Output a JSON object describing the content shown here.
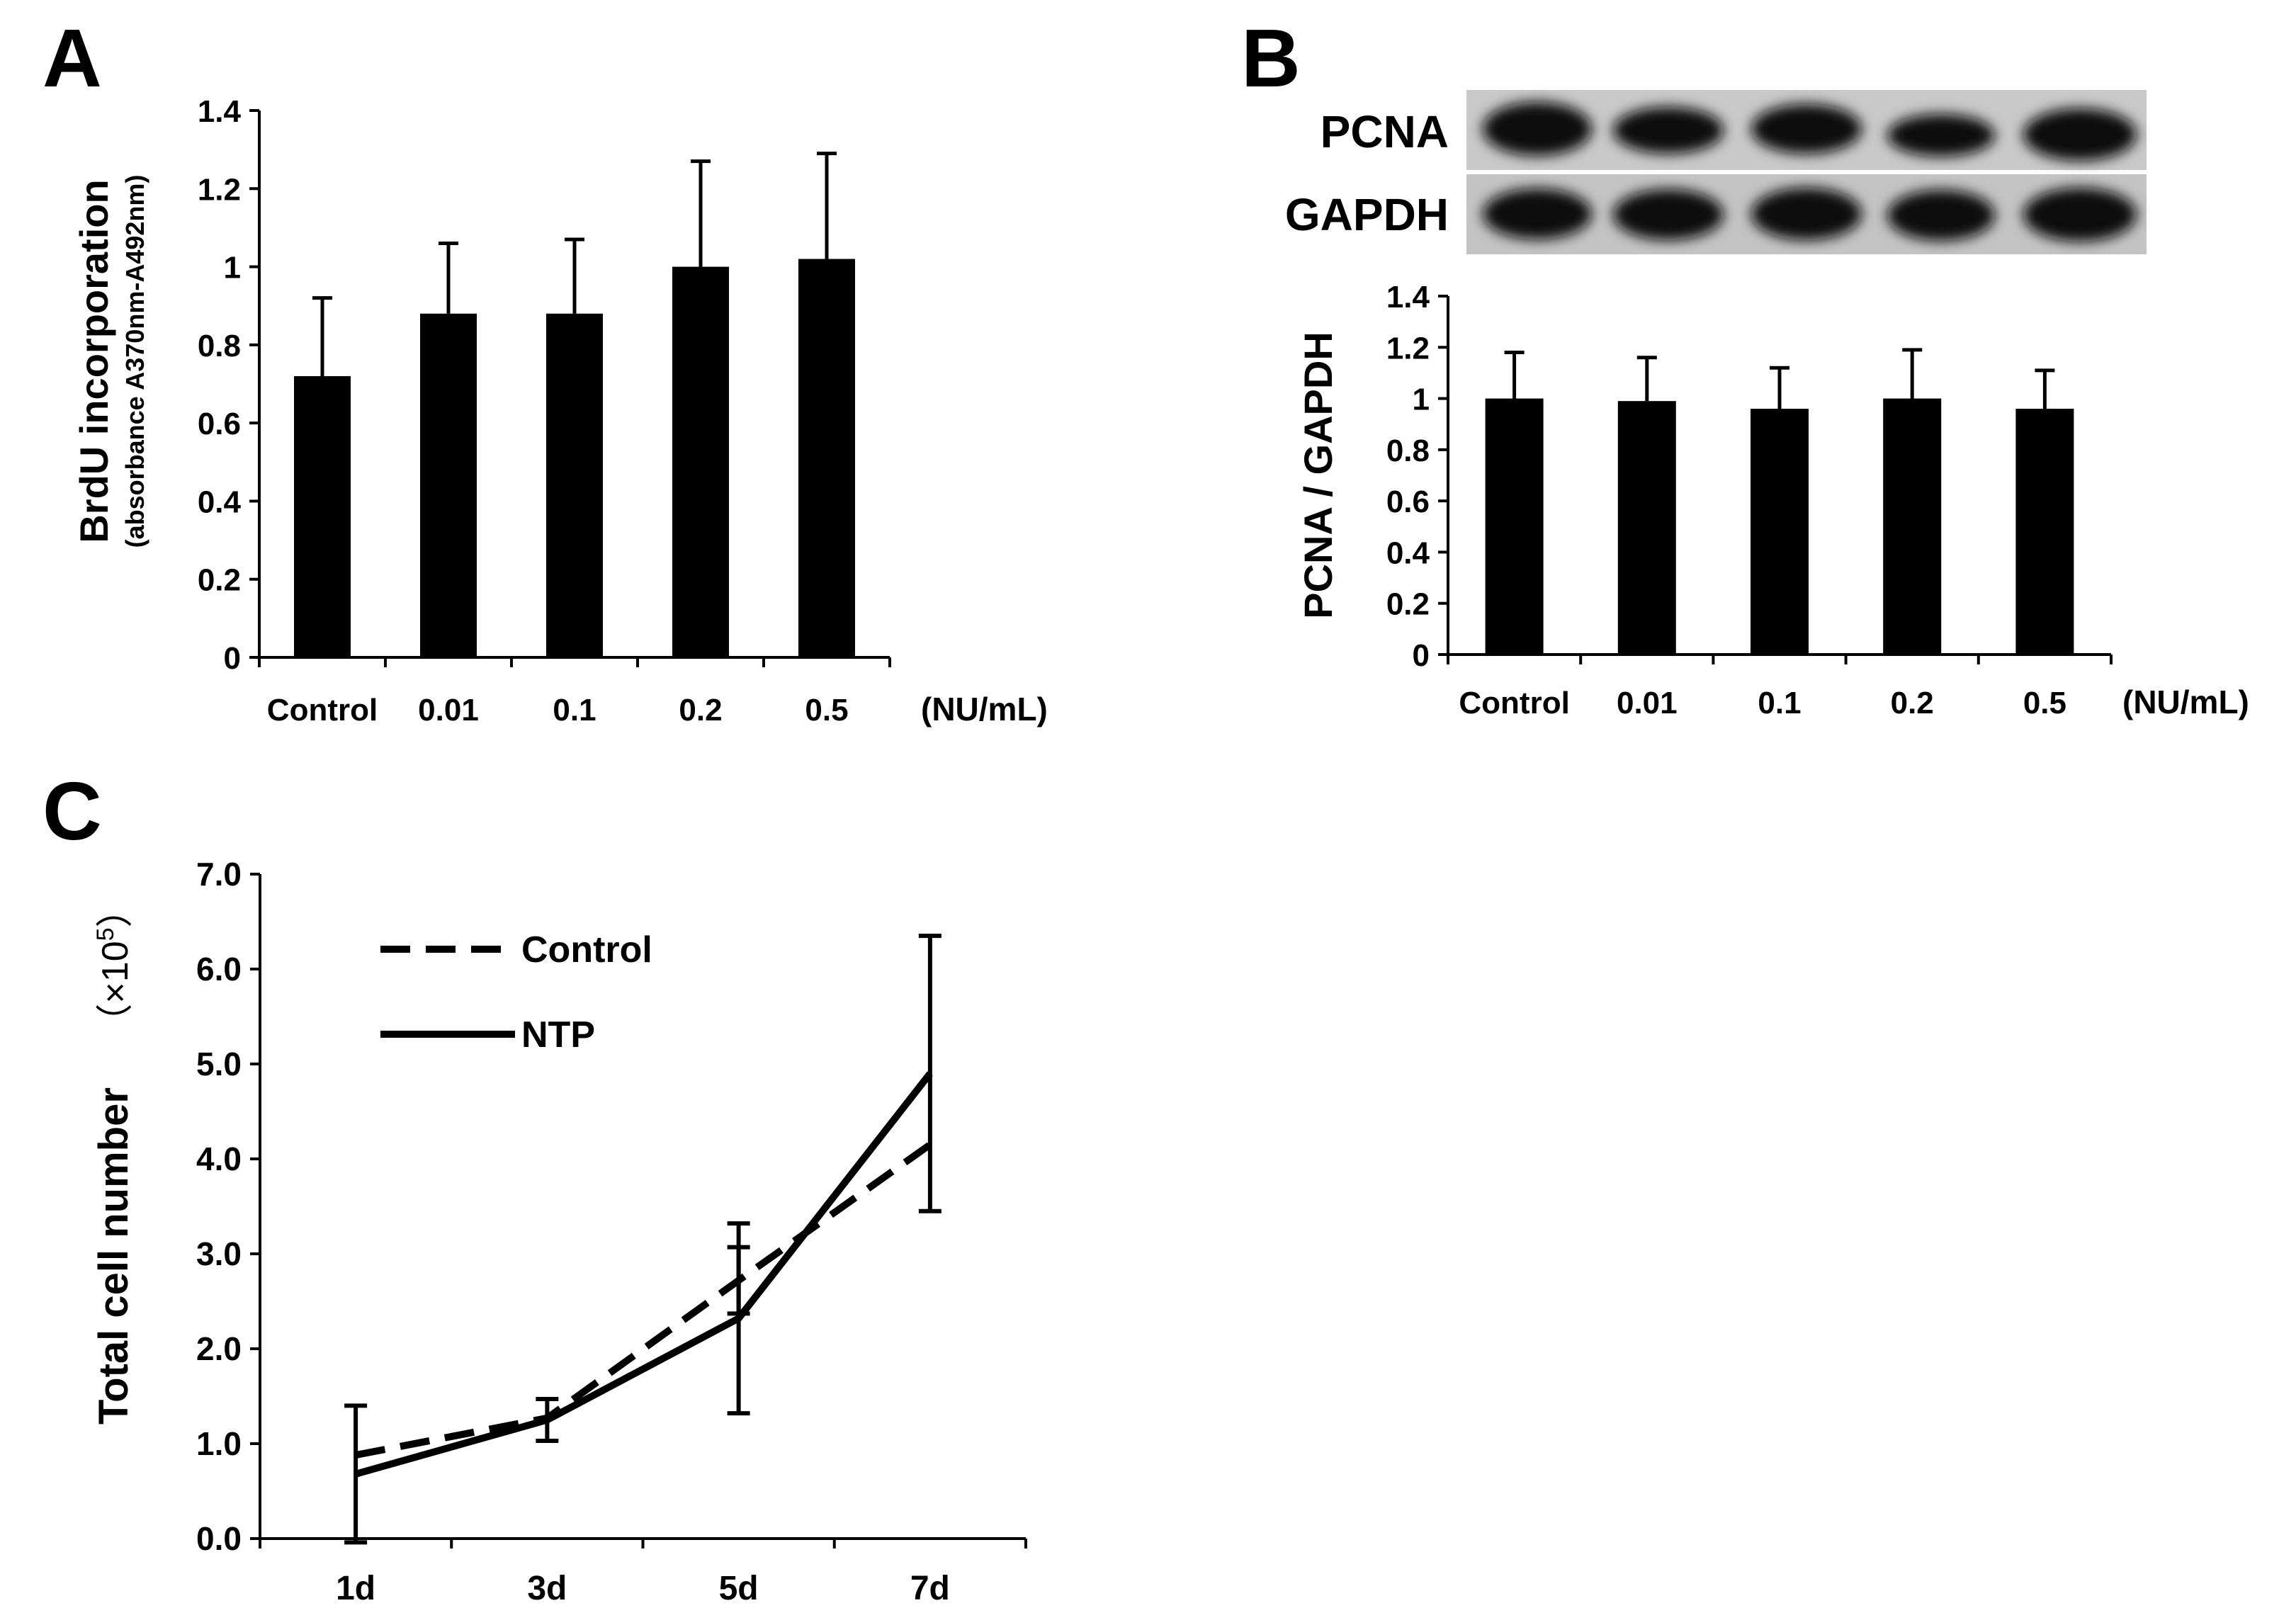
{
  "panels": {
    "a": {
      "label": "A"
    },
    "b": {
      "label": "B"
    },
    "c": {
      "label": "C"
    }
  },
  "chart_data": [
    {
      "panel": "A",
      "type": "bar",
      "categories": [
        "Control",
        "0.01",
        "0.1",
        "0.2",
        "0.5"
      ],
      "category_suffix": "(NU/mL)",
      "values": [
        0.72,
        0.88,
        0.88,
        1.0,
        1.02
      ],
      "errors": [
        0.2,
        0.18,
        0.19,
        0.27,
        0.27
      ],
      "ylabel": "BrdU incorporation",
      "ylabel_sub": "(absorbance A370nm-A492nm)",
      "ylim": [
        0,
        1.4
      ],
      "yticks": [
        "0",
        "0.2",
        "0.4",
        "0.6",
        "0.8",
        "1",
        "1.2",
        "1.4"
      ],
      "bar_color": "#000000",
      "grid": false
    },
    {
      "panel": "B",
      "type": "bar",
      "blot_labels": [
        "PCNA",
        "GAPDH"
      ],
      "categories": [
        "Control",
        "0.01",
        "0.1",
        "0.2",
        "0.5"
      ],
      "category_suffix": "(NU/mL)",
      "values": [
        1.0,
        0.99,
        0.96,
        1.0,
        0.96
      ],
      "errors": [
        0.18,
        0.17,
        0.16,
        0.19,
        0.15
      ],
      "ylabel": "PCNA / GAPDH",
      "ylim": [
        0,
        1.4
      ],
      "yticks": [
        "0",
        "0.2",
        "0.4",
        "0.6",
        "0.8",
        "1",
        "1.2",
        "1.4"
      ],
      "bar_color": "#000000",
      "grid": false
    },
    {
      "panel": "C",
      "type": "line",
      "x": [
        "1d",
        "3d",
        "5d",
        "7d"
      ],
      "series": [
        {
          "name": "Control",
          "style": "dashed",
          "values": [
            0.88,
            1.27,
            2.72,
            4.15
          ],
          "errors": [
            0.0,
            0.0,
            0.35,
            0.0
          ]
        },
        {
          "name": "NTP",
          "style": "solid",
          "values": [
            0.68,
            1.25,
            2.32,
            4.9
          ],
          "errors": [
            0.72,
            0.22,
            1.0,
            1.45
          ]
        }
      ],
      "ylabel": "Total cell number",
      "yunit_prefix": "（×10",
      "yunit_exp": "5",
      "yunit_suffix": "）",
      "ylim": [
        0,
        7
      ],
      "yticks": [
        "0.0",
        "1.0",
        "2.0",
        "3.0",
        "4.0",
        "5.0",
        "6.0",
        "7.0"
      ],
      "legend_position": "top-left",
      "grid": false
    }
  ]
}
